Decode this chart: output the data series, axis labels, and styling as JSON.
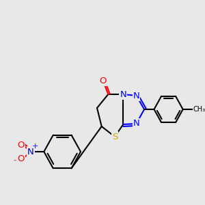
{
  "bg_color": "#e8e8e8",
  "bond_color": "#000000",
  "bond_width": 1.5,
  "atom_colors": {
    "N": "#0000ff",
    "O": "#ff0000",
    "S": "#ccaa00",
    "C": "#000000"
  }
}
